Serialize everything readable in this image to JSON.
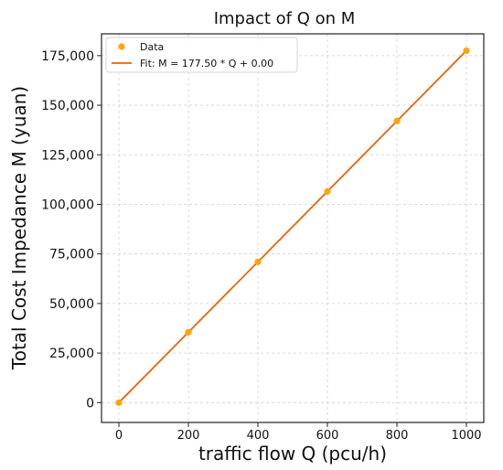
{
  "chart_data": {
    "type": "scatter",
    "title": "Impact of Q on M",
    "xlabel": "traffic flow Q (pcu/h)",
    "ylabel": "Total Cost Impedance M (yuan)",
    "xlim": [
      -50,
      1050
    ],
    "ylim": [
      -10000,
      186000
    ],
    "x_ticks": [
      0,
      200,
      400,
      600,
      800,
      1000
    ],
    "x_tick_labels": [
      "0",
      "200",
      "400",
      "600",
      "800",
      "1000"
    ],
    "y_ticks": [
      0,
      25000,
      50000,
      75000,
      100000,
      125000,
      150000,
      175000
    ],
    "y_tick_labels": [
      "0",
      "25,000",
      "50,000",
      "75,000",
      "100,000",
      "125,000",
      "150,000",
      "175,000"
    ],
    "grid": true,
    "legend_position": "top-left",
    "series": [
      {
        "name": "Data",
        "kind": "scatter",
        "color": "#FFA500",
        "x": [
          0,
          200,
          400,
          600,
          800,
          1000
        ],
        "y": [
          0,
          35500,
          71000,
          106500,
          142000,
          177500
        ]
      },
      {
        "name": "Fit: M = 177.50 * Q +  0.00",
        "kind": "line",
        "color": "#E8650A",
        "x": [
          0,
          1000
        ],
        "y": [
          0,
          177500
        ]
      }
    ]
  }
}
